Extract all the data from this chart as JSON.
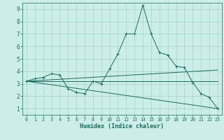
{
  "xlabel": "Humidex (Indice chaleur)",
  "bg_color": "#cceee8",
  "grid_color": "#aad8d0",
  "line_color": "#1a6b60",
  "xlim": [
    -0.5,
    23.5
  ],
  "ylim": [
    0.5,
    9.5
  ],
  "xticks": [
    0,
    1,
    2,
    3,
    4,
    5,
    6,
    7,
    8,
    9,
    10,
    11,
    12,
    13,
    14,
    15,
    16,
    17,
    18,
    19,
    20,
    21,
    22,
    23
  ],
  "yticks": [
    1,
    2,
    3,
    4,
    5,
    6,
    7,
    8,
    9
  ],
  "series1_x": [
    0,
    1,
    2,
    3,
    4,
    5,
    6,
    7,
    8,
    9,
    10,
    11,
    12,
    13,
    14,
    15,
    16,
    17,
    18,
    19,
    20,
    21,
    22,
    23
  ],
  "series1_y": [
    3.2,
    3.4,
    3.5,
    3.8,
    3.7,
    2.6,
    2.3,
    2.2,
    3.2,
    3.0,
    4.2,
    5.4,
    7.0,
    7.0,
    9.3,
    7.0,
    5.5,
    5.3,
    4.4,
    4.3,
    3.1,
    2.2,
    1.9,
    1.0
  ],
  "series2_x": [
    0,
    23
  ],
  "series2_y": [
    3.2,
    4.1
  ],
  "series3_x": [
    0,
    23
  ],
  "series3_y": [
    3.2,
    3.2
  ],
  "series4_x": [
    0,
    23
  ],
  "series4_y": [
    3.2,
    1.0
  ]
}
